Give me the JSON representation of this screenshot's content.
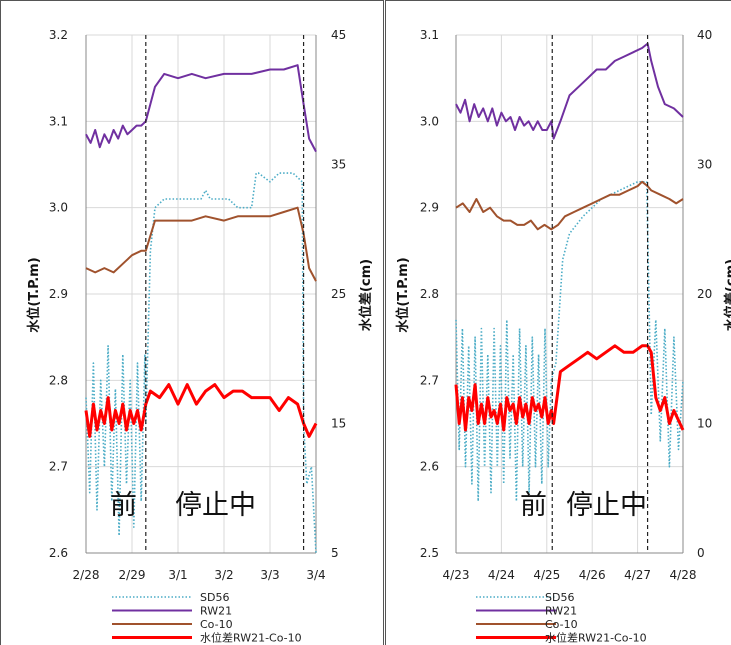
{
  "colors": {
    "SD56": "#4bacc6",
    "RW21": "#7030a0",
    "Co10": "#a0522d",
    "diff": "#ff0000"
  },
  "chart_data": [
    {
      "type": "line",
      "ylabel": "水位(T.P.m)",
      "y2label": "水位差(cm)",
      "ylim": [
        2.6,
        3.2
      ],
      "y_ticks": [
        "3.2",
        "3.1",
        "3.0",
        "2.9",
        "2.8",
        "2.7",
        "2.6"
      ],
      "y2lim": [
        5,
        45
      ],
      "y2_ticks": [
        "45",
        "35",
        "25",
        "15",
        "5"
      ],
      "x_ticks": [
        "2/28",
        "2/29",
        "3/1",
        "3/2",
        "3/3",
        "3/4"
      ],
      "xlim": [
        0,
        5
      ],
      "grid": true,
      "vlines": [
        1.3,
        4.73
      ],
      "annotations": [
        "前",
        "停止中"
      ],
      "series": [
        {
          "name": "SD56",
          "axis": "left",
          "style": "dotted",
          "color": "#4bacc6",
          "x": [
            0,
            0.08,
            0.16,
            0.24,
            0.32,
            0.4,
            0.48,
            0.56,
            0.64,
            0.72,
            0.8,
            0.88,
            0.96,
            1.04,
            1.12,
            1.2,
            1.28,
            1.3,
            1.4,
            1.5,
            1.7,
            2.0,
            2.3,
            2.5,
            2.6,
            2.7,
            2.9,
            3.1,
            3.3,
            3.6,
            3.7,
            3.75,
            4.0,
            4.2,
            4.5,
            4.7,
            4.73,
            4.8,
            4.9,
            5.0
          ],
          "y": [
            2.78,
            2.67,
            2.82,
            2.65,
            2.8,
            2.7,
            2.84,
            2.66,
            2.79,
            2.62,
            2.83,
            2.68,
            2.8,
            2.63,
            2.82,
            2.66,
            2.83,
            2.75,
            2.95,
            3.0,
            3.01,
            3.01,
            3.01,
            3.01,
            3.02,
            3.01,
            3.01,
            3.01,
            3.0,
            3.0,
            3.04,
            3.04,
            3.03,
            3.04,
            3.04,
            3.03,
            2.75,
            2.68,
            2.7,
            2.6
          ]
        },
        {
          "name": "RW21",
          "axis": "left",
          "style": "solid",
          "color": "#7030a0",
          "x": [
            0,
            0.1,
            0.2,
            0.3,
            0.4,
            0.5,
            0.6,
            0.7,
            0.8,
            0.9,
            1.0,
            1.1,
            1.2,
            1.3,
            1.5,
            1.7,
            2.0,
            2.3,
            2.6,
            3.0,
            3.3,
            3.6,
            4.0,
            4.3,
            4.6,
            4.73,
            4.85,
            5.0
          ],
          "y": [
            3.085,
            3.075,
            3.09,
            3.07,
            3.085,
            3.075,
            3.09,
            3.08,
            3.095,
            3.085,
            3.09,
            3.095,
            3.095,
            3.1,
            3.14,
            3.155,
            3.15,
            3.155,
            3.15,
            3.155,
            3.155,
            3.155,
            3.16,
            3.16,
            3.165,
            3.12,
            3.08,
            3.065
          ]
        },
        {
          "name": "Co-10",
          "axis": "left",
          "style": "solid",
          "color": "#a0522d",
          "x": [
            0,
            0.2,
            0.4,
            0.6,
            0.8,
            1.0,
            1.2,
            1.3,
            1.5,
            1.7,
            2.0,
            2.3,
            2.6,
            3.0,
            3.3,
            3.6,
            4.0,
            4.3,
            4.6,
            4.73,
            4.85,
            5.0
          ],
          "y": [
            2.93,
            2.925,
            2.93,
            2.925,
            2.935,
            2.945,
            2.95,
            2.95,
            2.985,
            2.985,
            2.985,
            2.985,
            2.99,
            2.985,
            2.99,
            2.99,
            2.99,
            2.995,
            3.0,
            2.97,
            2.93,
            2.915
          ]
        },
        {
          "name": "水位差RW21-Co-10",
          "axis": "right",
          "style": "solid",
          "color": "#ff0000",
          "x": [
            0,
            0.08,
            0.16,
            0.24,
            0.32,
            0.4,
            0.48,
            0.56,
            0.64,
            0.72,
            0.8,
            0.88,
            0.96,
            1.04,
            1.12,
            1.2,
            1.3,
            1.4,
            1.6,
            1.8,
            2.0,
            2.2,
            2.4,
            2.6,
            2.8,
            3.0,
            3.2,
            3.4,
            3.6,
            3.8,
            4.0,
            4.2,
            4.4,
            4.6,
            4.73,
            4.85,
            5.0
          ],
          "y": [
            16,
            14,
            16.5,
            14.5,
            16,
            15,
            17,
            14.5,
            16,
            15,
            16.5,
            14.5,
            16,
            15,
            16,
            14.5,
            16.5,
            17.5,
            17,
            18,
            16.5,
            18,
            16.5,
            17.5,
            18,
            17,
            17.5,
            17.5,
            17,
            17,
            17,
            16,
            17,
            16.5,
            15,
            14,
            15
          ]
        }
      ]
    },
    {
      "type": "line",
      "ylabel": "水位(T.P.m)",
      "y2label": "水位差(cm)",
      "ylim": [
        2.5,
        3.1
      ],
      "y_ticks": [
        "3.1",
        "3.0",
        "2.9",
        "2.8",
        "2.7",
        "2.6",
        "2.5"
      ],
      "y2lim": [
        0,
        40
      ],
      "y2_ticks": [
        "40",
        "30",
        "20",
        "10",
        "0"
      ],
      "x_ticks": [
        "4/23",
        "4/24",
        "4/25",
        "4/26",
        "4/27",
        "4/28"
      ],
      "xlim": [
        0,
        5
      ],
      "grid": true,
      "vlines": [
        2.12,
        4.22
      ],
      "annotations": [
        "前",
        "停止中"
      ],
      "series": [
        {
          "name": "SD56",
          "axis": "left",
          "style": "dotted",
          "color": "#4bacc6",
          "x": [
            0,
            0.07,
            0.14,
            0.21,
            0.28,
            0.35,
            0.42,
            0.49,
            0.56,
            0.63,
            0.7,
            0.77,
            0.84,
            0.91,
            0.98,
            1.05,
            1.12,
            1.19,
            1.26,
            1.33,
            1.4,
            1.47,
            1.54,
            1.61,
            1.68,
            1.75,
            1.82,
            1.89,
            1.96,
            2.03,
            2.1,
            2.2,
            2.35,
            2.5,
            2.8,
            3.2,
            3.6,
            4.0,
            4.2,
            4.3,
            4.4,
            4.5,
            4.6,
            4.7,
            4.8,
            4.9,
            5.0
          ],
          "y": [
            2.77,
            2.62,
            2.76,
            2.6,
            2.74,
            2.58,
            2.75,
            2.56,
            2.76,
            2.6,
            2.73,
            2.57,
            2.76,
            2.6,
            2.74,
            2.58,
            2.77,
            2.61,
            2.73,
            2.56,
            2.76,
            2.6,
            2.74,
            2.57,
            2.75,
            2.6,
            2.73,
            2.58,
            2.76,
            2.6,
            2.7,
            2.72,
            2.84,
            2.87,
            2.89,
            2.91,
            2.92,
            2.93,
            2.93,
            2.66,
            2.77,
            2.63,
            2.76,
            2.6,
            2.75,
            2.62,
            2.7
          ]
        },
        {
          "name": "RW21",
          "axis": "left",
          "style": "solid",
          "color": "#7030a0",
          "x": [
            0,
            0.1,
            0.2,
            0.3,
            0.4,
            0.5,
            0.6,
            0.7,
            0.8,
            0.9,
            1.0,
            1.1,
            1.2,
            1.3,
            1.4,
            1.5,
            1.6,
            1.7,
            1.8,
            1.9,
            2.0,
            2.1,
            2.15,
            2.3,
            2.5,
            2.7,
            2.9,
            3.1,
            3.3,
            3.5,
            3.7,
            3.9,
            4.1,
            4.22,
            4.3,
            4.45,
            4.6,
            4.8,
            5.0
          ],
          "y": [
            3.02,
            3.01,
            3.025,
            3.0,
            3.02,
            3.005,
            3.015,
            3.0,
            3.015,
            2.995,
            3.01,
            3.0,
            3.005,
            2.99,
            3.005,
            2.995,
            3.0,
            2.99,
            3.0,
            2.99,
            2.99,
            3.0,
            2.98,
            3.0,
            3.03,
            3.04,
            3.05,
            3.06,
            3.06,
            3.07,
            3.075,
            3.08,
            3.085,
            3.09,
            3.07,
            3.04,
            3.02,
            3.015,
            3.005
          ]
        },
        {
          "name": "Co-10",
          "axis": "left",
          "style": "solid",
          "color": "#a0522d",
          "x": [
            0,
            0.15,
            0.3,
            0.45,
            0.6,
            0.75,
            0.9,
            1.05,
            1.2,
            1.35,
            1.5,
            1.65,
            1.8,
            1.95,
            2.1,
            2.25,
            2.4,
            2.6,
            2.8,
            3.0,
            3.2,
            3.4,
            3.6,
            3.8,
            4.0,
            4.1,
            4.22,
            4.3,
            4.5,
            4.7,
            4.85,
            5.0
          ],
          "y": [
            2.9,
            2.905,
            2.895,
            2.91,
            2.895,
            2.9,
            2.89,
            2.885,
            2.885,
            2.88,
            2.88,
            2.885,
            2.875,
            2.88,
            2.875,
            2.88,
            2.89,
            2.895,
            2.9,
            2.905,
            2.91,
            2.915,
            2.915,
            2.92,
            2.925,
            2.93,
            2.925,
            2.92,
            2.915,
            2.91,
            2.905,
            2.91
          ]
        },
        {
          "name": "水位差RW21-Co-10",
          "axis": "right",
          "style": "solid",
          "color": "#ff0000",
          "x": [
            0,
            0.07,
            0.14,
            0.21,
            0.28,
            0.35,
            0.42,
            0.49,
            0.56,
            0.63,
            0.7,
            0.77,
            0.84,
            0.91,
            0.98,
            1.05,
            1.12,
            1.19,
            1.26,
            1.33,
            1.4,
            1.47,
            1.54,
            1.61,
            1.68,
            1.75,
            1.82,
            1.89,
            1.96,
            2.03,
            2.1,
            2.15,
            2.3,
            2.5,
            2.7,
            2.9,
            3.1,
            3.3,
            3.5,
            3.7,
            3.9,
            4.1,
            4.22,
            4.3,
            4.4,
            4.5,
            4.6,
            4.7,
            4.8,
            5.0
          ],
          "y": [
            13,
            10,
            12,
            9.5,
            12,
            11,
            13,
            10,
            11.5,
            10,
            12,
            10.5,
            11,
            10,
            11.5,
            9.5,
            12,
            11,
            11.5,
            10,
            12,
            10.5,
            11.5,
            10,
            12,
            11,
            11.5,
            10.5,
            12,
            10,
            11,
            10,
            14,
            14.5,
            15,
            15.5,
            15,
            15.5,
            16,
            15.5,
            15.5,
            16,
            16,
            15.5,
            12,
            11,
            12,
            10,
            11,
            9.5
          ]
        }
      ]
    }
  ],
  "legend": [
    "SD56",
    "RW21",
    "Co-10",
    "水位差RW21-Co-10"
  ]
}
